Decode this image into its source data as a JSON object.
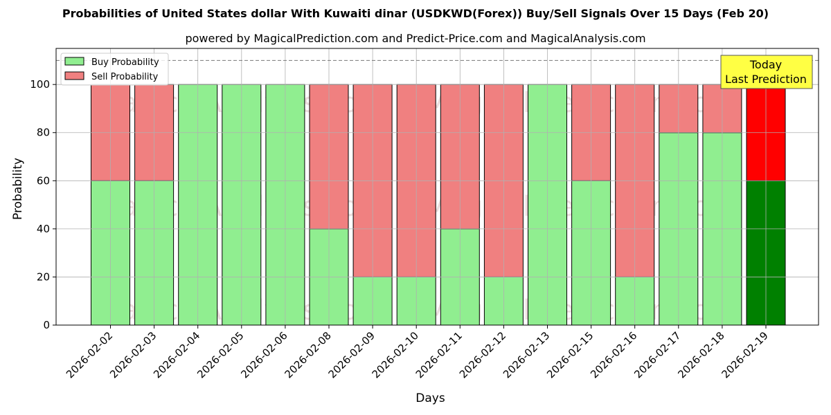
{
  "title": "Probabilities of United States dollar With Kuwaiti dinar (USDKWD(Forex)) Buy/Sell Signals Over 15 Days (Feb 20)",
  "subtitle": "powered by MagicalPrediction.com and Predict-Price.com and MagicalAnalysis.com",
  "colors": {
    "buy": "#90ee90",
    "sell": "#f08080",
    "buy_today": "#008000",
    "sell_today": "#ff0000",
    "annotation_bg": "#ffff44"
  },
  "watermarks": [
    "MagicalAnalysis.com",
    "MagicalPrediction.com"
  ],
  "annotation": {
    "line1": "Today",
    "line2": "Last Prediction"
  },
  "chart_data": {
    "type": "bar",
    "stacked": true,
    "title": "Probabilities of United States dollar With Kuwaiti dinar (USDKWD(Forex)) Buy/Sell Signals Over 15 Days (Feb 20)",
    "subtitle": "powered by MagicalPrediction.com and Predict-Price.com and MagicalAnalysis.com",
    "xlabel": "Days",
    "ylabel": "Probability",
    "ylim": [
      0,
      115
    ],
    "yticks": [
      0,
      20,
      40,
      60,
      80,
      100
    ],
    "grid": true,
    "reference_line": {
      "y": 110,
      "style": "dashed"
    },
    "legend": {
      "position": "upper left",
      "entries": [
        "Buy Probability",
        "Sell Probability"
      ]
    },
    "categories": [
      "2026-02-02",
      "2026-02-03",
      "2026-02-04",
      "2026-02-05",
      "2026-02-06",
      "2026-02-08",
      "2026-02-09",
      "2026-02-10",
      "2026-02-11",
      "2026-02-12",
      "2026-02-13",
      "2026-02-15",
      "2026-02-16",
      "2026-02-17",
      "2026-02-18",
      "2026-02-19"
    ],
    "series": [
      {
        "name": "Buy Probability",
        "values": [
          60,
          60,
          100,
          100,
          100,
          40,
          20,
          20,
          40,
          20,
          100,
          60,
          20,
          80,
          80,
          60
        ]
      },
      {
        "name": "Sell Probability",
        "values": [
          40,
          40,
          0,
          0,
          0,
          60,
          80,
          80,
          60,
          80,
          0,
          40,
          80,
          20,
          20,
          40
        ]
      }
    ],
    "highlight": {
      "category": "2026-02-19",
      "label": "Today Last Prediction"
    }
  }
}
